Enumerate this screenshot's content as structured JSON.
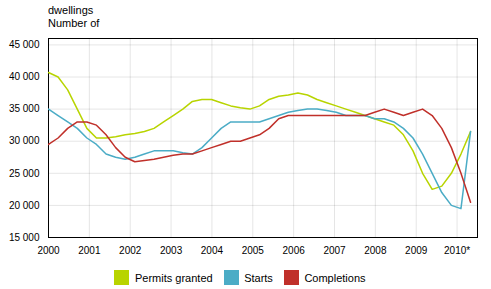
{
  "chart_data": {
    "type": "line",
    "annotations": [
      "dwellings",
      "Number of"
    ],
    "x": [
      2000,
      2000.234773,
      2000.469545,
      2000.704318,
      2000.939091,
      2001.173864,
      2001.408636,
      2001.643409,
      2001.878182,
      2002.112955,
      2002.347727,
      2002.5825,
      2002.817273,
      2003.052045,
      2003.286818,
      2003.521591,
      2003.756364,
      2003.991136,
      2004.225909,
      2004.460682,
      2004.695455,
      2004.930227,
      2005.165,
      2005.399773,
      2005.634545,
      2005.869318,
      2006.104091,
      2006.338864,
      2006.573636,
      2006.808409,
      2007.043182,
      2007.277955,
      2007.512727,
      2007.7475,
      2007.982273,
      2008.217045,
      2008.451818,
      2008.686591,
      2008.921364,
      2009.156136,
      2009.390909,
      2009.625682,
      2009.860455,
      2010.095227,
      2010.33
    ],
    "series": [
      {
        "name": "Permits granted",
        "color": "#b8d400",
        "values": [
          40700,
          40000,
          38000,
          35000,
          32000,
          30500,
          30500,
          30700,
          31000,
          31200,
          31500,
          32000,
          33000,
          34000,
          35000,
          36200,
          36500,
          36500,
          36000,
          35500,
          35200,
          35000,
          35500,
          36500,
          37000,
          37200,
          37500,
          37200,
          36500,
          36000,
          35500,
          35000,
          34500,
          34000,
          33500,
          33000,
          32500,
          31000,
          28500,
          25000,
          22500,
          23000,
          25000,
          28000,
          31500
        ]
      },
      {
        "name": "Starts",
        "color": "#4bacc6",
        "values": [
          35000,
          34000,
          33000,
          32000,
          30500,
          29500,
          28000,
          27500,
          27200,
          27500,
          28000,
          28500,
          28500,
          28500,
          28200,
          28000,
          29000,
          30500,
          32000,
          33000,
          33000,
          33000,
          33000,
          33500,
          34000,
          34500,
          34800,
          35000,
          35000,
          34800,
          34500,
          34000,
          34000,
          34000,
          33500,
          33500,
          33000,
          32000,
          30500,
          28000,
          25000,
          22000,
          20000,
          19500,
          31500
        ]
      },
      {
        "name": "Completions",
        "color": "#c0302a",
        "values": [
          29500,
          30500,
          32000,
          33000,
          33000,
          32500,
          31000,
          29000,
          27500,
          26800,
          27000,
          27200,
          27500,
          27800,
          28000,
          28000,
          28500,
          29000,
          29500,
          30000,
          30000,
          30500,
          31000,
          32000,
          33500,
          34000,
          34000,
          34000,
          34000,
          34000,
          34000,
          34000,
          34000,
          34000,
          34500,
          35000,
          34500,
          34000,
          34500,
          35000,
          34000,
          32000,
          29000,
          25000,
          20500
        ]
      }
    ],
    "xlim": [
      2000,
      2010.5
    ],
    "xticks": [
      2000,
      2001,
      2002,
      2003,
      2004,
      2005,
      2006,
      2007,
      2008,
      2009,
      {
        "value": 2010,
        "label": "2010*"
      }
    ],
    "ylim": [
      15000,
      46000
    ],
    "yticks": [
      {
        "value": 15000,
        "label": "15 000"
      },
      {
        "value": 20000,
        "label": "20 000"
      },
      {
        "value": 25000,
        "label": "25 000"
      },
      {
        "value": 30000,
        "label": "30 000"
      },
      {
        "value": 35000,
        "label": "35 000"
      },
      {
        "value": 40000,
        "label": "40 000"
      },
      {
        "value": 45000,
        "label": "45 000"
      }
    ],
    "grid": true,
    "legend": "bottom"
  }
}
